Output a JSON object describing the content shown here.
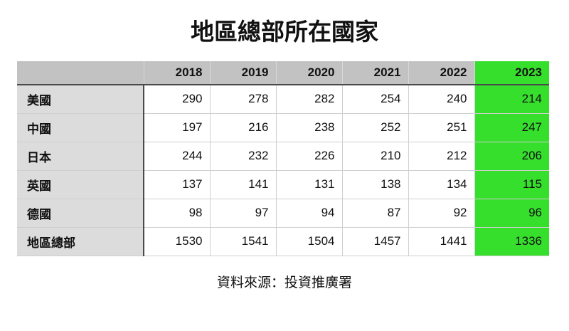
{
  "title": "地區總部所在國家",
  "source": "資料來源：投資推廣署",
  "colors": {
    "header_bg": "#c2c2c2",
    "label_bg": "#dcdcdc",
    "highlight": "#37df2d",
    "dark_border": "#4a4a4a",
    "light_border": "#cfcfcf"
  },
  "chart_data": {
    "type": "table",
    "title": "地區總部所在國家",
    "columns": [
      "2018",
      "2019",
      "2020",
      "2021",
      "2022",
      "2023"
    ],
    "highlight_column": "2023",
    "rows": [
      {
        "label": "美國",
        "values": [
          290,
          278,
          282,
          254,
          240,
          214
        ]
      },
      {
        "label": "中國",
        "values": [
          197,
          216,
          238,
          252,
          251,
          247
        ]
      },
      {
        "label": "日本",
        "values": [
          244,
          232,
          226,
          210,
          212,
          206
        ]
      },
      {
        "label": "英國",
        "values": [
          137,
          141,
          131,
          138,
          134,
          115
        ]
      },
      {
        "label": "德國",
        "values": [
          98,
          97,
          94,
          87,
          92,
          96
        ]
      },
      {
        "label": "地區總部",
        "values": [
          1530,
          1541,
          1504,
          1457,
          1441,
          1336
        ]
      }
    ],
    "source": "資料來源：投資推廣署"
  }
}
